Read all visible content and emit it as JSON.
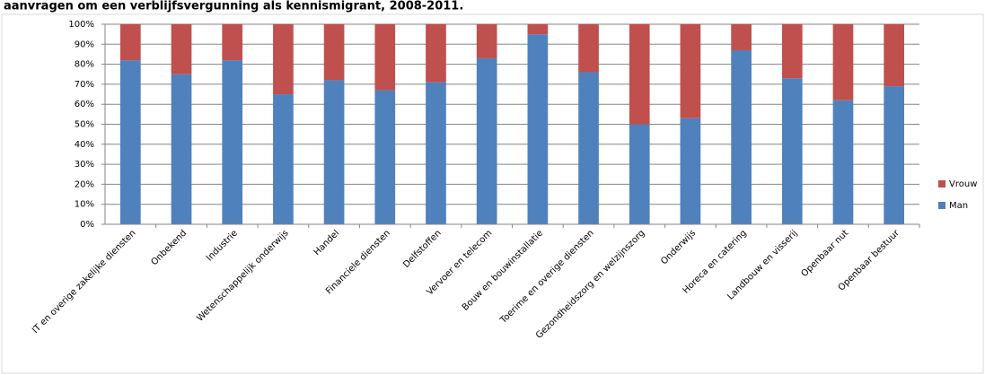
{
  "chart_data": {
    "type": "stacked_bar",
    "title": "aanvragen om een verblijfsvergunning als kennismigrant, 2008-2011.",
    "categories": [
      "IT en overige zakelijke diensten",
      "Onbekend",
      "Industrie",
      "Wetenschappelijk onderwijs",
      "Handel",
      "Financiele diensten",
      "Delfstoffen",
      "Vervoer en telecom",
      "Bouw en bouwinstallatie",
      "Toerime en overige diensten",
      "Gezondheidszorg en welzijnszorg",
      "Onderwijs",
      "Horeca en catering",
      "Landbouw en visserij",
      "Openbaar nut",
      "Openbaar bestuur"
    ],
    "series": [
      {
        "name": "Man",
        "color": "#4f81bd",
        "values": [
          82,
          75,
          82,
          65,
          72,
          67,
          71,
          83,
          95,
          76,
          50,
          53,
          87,
          73,
          62,
          69
        ]
      },
      {
        "name": "Vrouw",
        "color": "#c0504d",
        "values": [
          18,
          25,
          18,
          35,
          28,
          33,
          29,
          17,
          5,
          24,
          50,
          47,
          13,
          27,
          38,
          31
        ]
      }
    ],
    "ylim": [
      0,
      100
    ],
    "yticks": [
      {
        "value": 0,
        "label": "0%"
      },
      {
        "value": 10,
        "label": "10%"
      },
      {
        "value": 20,
        "label": "20%"
      },
      {
        "value": 30,
        "label": "30%"
      },
      {
        "value": 40,
        "label": "40%"
      },
      {
        "value": 50,
        "label": "50%"
      },
      {
        "value": 60,
        "label": "60%"
      },
      {
        "value": 70,
        "label": "70%"
      },
      {
        "value": 80,
        "label": "80%"
      },
      {
        "value": 90,
        "label": "90%"
      },
      {
        "value": 100,
        "label": "100%"
      }
    ],
    "grid": true,
    "legend": "right"
  }
}
